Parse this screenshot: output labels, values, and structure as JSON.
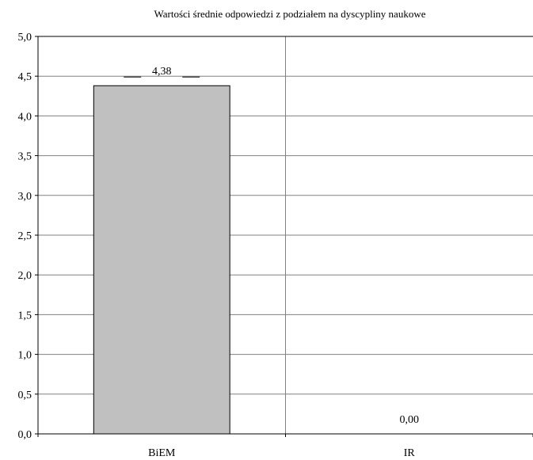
{
  "chart_data": {
    "type": "bar",
    "title": "Wartości średnie odpowiedzi z podziałem na dyscypliny naukowe",
    "categories": [
      "BiEM",
      "IR"
    ],
    "values": [
      4.38,
      0.0
    ],
    "data_labels": [
      "4,38",
      "0,00"
    ],
    "ylim": [
      0,
      5.0
    ],
    "yticks": [
      0,
      0.5,
      1.0,
      1.5,
      2.0,
      2.5,
      3.0,
      3.5,
      4.0,
      4.5,
      5.0
    ],
    "ytick_labels": [
      "0,0",
      "0,5",
      "1,0",
      "1,5",
      "2,0",
      "2,5",
      "3,0",
      "3,5",
      "4,0",
      "4,5",
      "5,0"
    ],
    "xlabel": "",
    "ylabel": "",
    "grid": true,
    "legend": "none",
    "colors": {
      "bar": "#c0c0c0",
      "bar_stroke": "#000000",
      "grid": "#808080",
      "axis": "#000000"
    }
  }
}
